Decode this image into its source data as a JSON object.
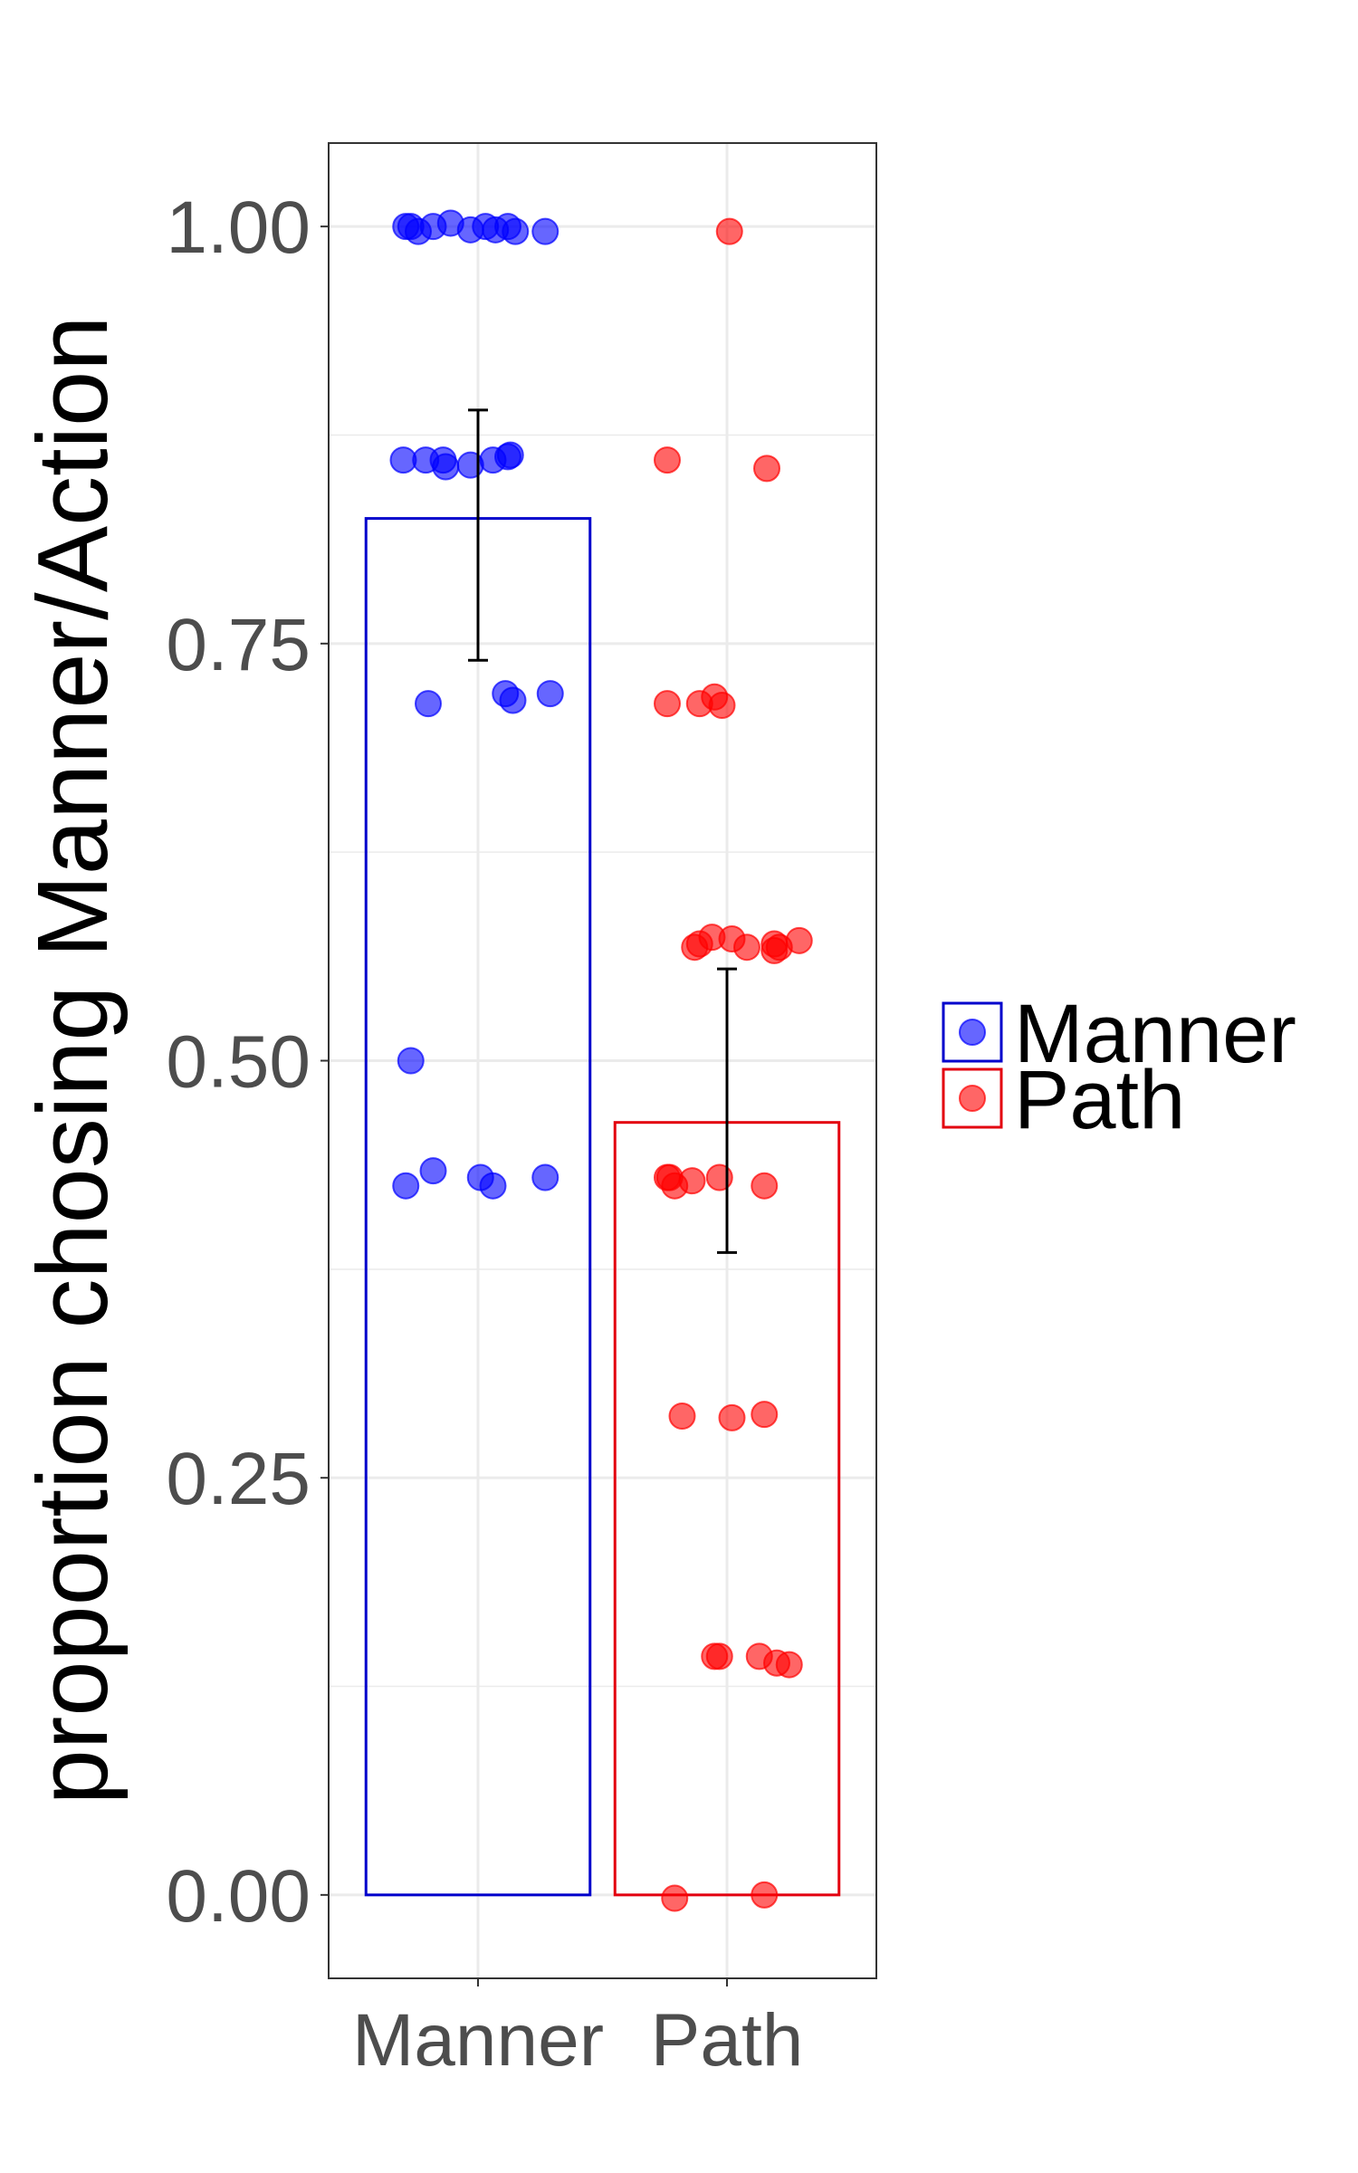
{
  "chart_data": {
    "type": "bar",
    "title": "",
    "xlabel": "",
    "ylabel": "proportion chosing Manner/Action",
    "categories": [
      "Manner",
      "Path"
    ],
    "ylim": [
      -0.05,
      1.05
    ],
    "yticks": [
      0.0,
      0.25,
      0.5,
      0.75,
      1.0
    ],
    "ytick_labels": [
      "0.00",
      "0.25",
      "0.50",
      "0.75",
      "1.00"
    ],
    "grid": true,
    "legend": {
      "position": "right",
      "entries": [
        "Manner",
        "Path"
      ]
    },
    "colors": {
      "Manner": "#0000ff",
      "Path": "#ff0000",
      "Manner_bar": "#0000cc",
      "Path_bar": "#e3000f"
    },
    "series": [
      {
        "name": "Manner",
        "mean": 0.825,
        "error": [
          0.74,
          0.89
        ],
        "points": [
          {
            "x": -0.29,
            "y": 1.0
          },
          {
            "x": -0.27,
            "y": 1.0
          },
          {
            "x": -0.24,
            "y": 0.997
          },
          {
            "x": -0.18,
            "y": 1.0
          },
          {
            "x": -0.11,
            "y": 1.002
          },
          {
            "x": -0.03,
            "y": 0.998
          },
          {
            "x": 0.03,
            "y": 1.0
          },
          {
            "x": 0.07,
            "y": 0.998
          },
          {
            "x": 0.12,
            "y": 1.0
          },
          {
            "x": 0.15,
            "y": 0.997
          },
          {
            "x": 0.27,
            "y": 0.997
          },
          {
            "x": -0.3,
            "y": 0.86
          },
          {
            "x": -0.21,
            "y": 0.86
          },
          {
            "x": -0.14,
            "y": 0.86
          },
          {
            "x": -0.13,
            "y": 0.856
          },
          {
            "x": -0.03,
            "y": 0.857
          },
          {
            "x": 0.06,
            "y": 0.86
          },
          {
            "x": 0.12,
            "y": 0.862
          },
          {
            "x": 0.13,
            "y": 0.863
          },
          {
            "x": -0.2,
            "y": 0.714
          },
          {
            "x": 0.11,
            "y": 0.72
          },
          {
            "x": 0.14,
            "y": 0.716
          },
          {
            "x": 0.29,
            "y": 0.72
          },
          {
            "x": -0.27,
            "y": 0.5
          },
          {
            "x": -0.29,
            "y": 0.425
          },
          {
            "x": -0.18,
            "y": 0.434
          },
          {
            "x": 0.01,
            "y": 0.43
          },
          {
            "x": 0.06,
            "y": 0.425
          },
          {
            "x": 0.27,
            "y": 0.43
          }
        ]
      },
      {
        "name": "Path",
        "mean": 0.463,
        "error": [
          0.385,
          0.555
        ],
        "points": [
          {
            "x": 0.01,
            "y": 0.997
          },
          {
            "x": -0.24,
            "y": 0.86
          },
          {
            "x": 0.16,
            "y": 0.855
          },
          {
            "x": -0.24,
            "y": 0.714
          },
          {
            "x": -0.11,
            "y": 0.714
          },
          {
            "x": -0.05,
            "y": 0.718
          },
          {
            "x": -0.02,
            "y": 0.713
          },
          {
            "x": -0.13,
            "y": 0.568
          },
          {
            "x": -0.11,
            "y": 0.57
          },
          {
            "x": -0.06,
            "y": 0.574
          },
          {
            "x": 0.02,
            "y": 0.573
          },
          {
            "x": 0.08,
            "y": 0.568
          },
          {
            "x": 0.19,
            "y": 0.57
          },
          {
            "x": 0.19,
            "y": 0.566
          },
          {
            "x": 0.21,
            "y": 0.568
          },
          {
            "x": 0.29,
            "y": 0.572
          },
          {
            "x": -0.24,
            "y": 0.43
          },
          {
            "x": -0.23,
            "y": 0.43
          },
          {
            "x": -0.21,
            "y": 0.425
          },
          {
            "x": -0.14,
            "y": 0.428
          },
          {
            "x": -0.03,
            "y": 0.43
          },
          {
            "x": 0.15,
            "y": 0.425
          },
          {
            "x": -0.18,
            "y": 0.287
          },
          {
            "x": 0.02,
            "y": 0.286
          },
          {
            "x": 0.15,
            "y": 0.288
          },
          {
            "x": -0.05,
            "y": 0.143
          },
          {
            "x": -0.03,
            "y": 0.143
          },
          {
            "x": 0.13,
            "y": 0.143
          },
          {
            "x": 0.2,
            "y": 0.139
          },
          {
            "x": 0.25,
            "y": 0.138
          },
          {
            "x": -0.21,
            "y": -0.002
          },
          {
            "x": 0.15,
            "y": 0.0
          }
        ]
      }
    ]
  }
}
